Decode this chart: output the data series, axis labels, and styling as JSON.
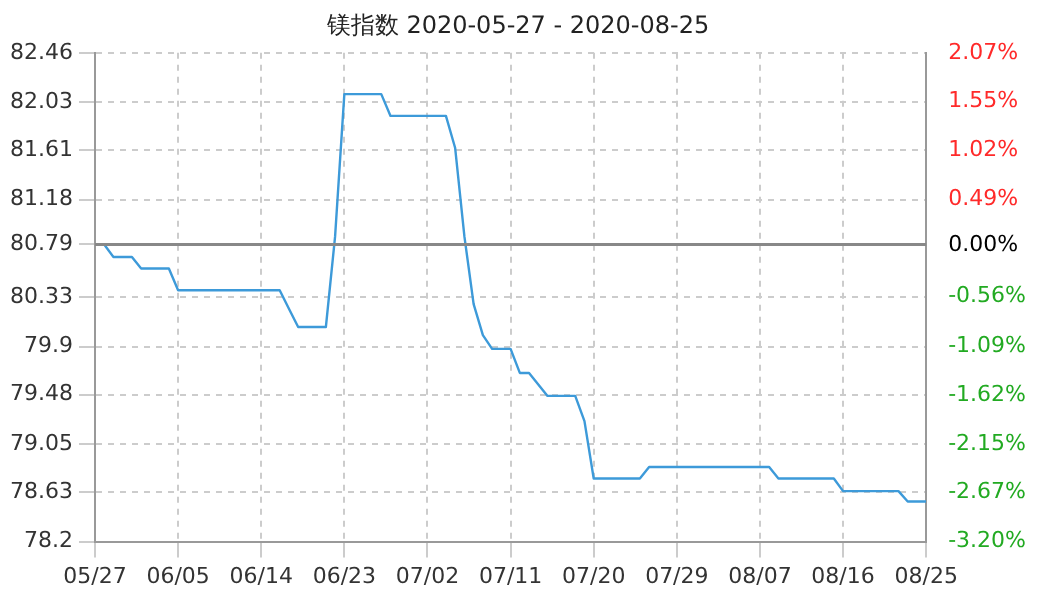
{
  "chart_data": {
    "type": "line",
    "title": "镁指数 2020-05-27 - 2020-08-25",
    "x": [
      "2020-05-27",
      "2020-05-28",
      "2020-05-29",
      "2020-05-31",
      "2020-06-01",
      "2020-06-04",
      "2020-06-05",
      "2020-06-16",
      "2020-06-17",
      "2020-06-18",
      "2020-06-21",
      "2020-06-22",
      "2020-06-23",
      "2020-06-27",
      "2020-06-28",
      "2020-07-04",
      "2020-07-05",
      "2020-07-06",
      "2020-07-07",
      "2020-07-08",
      "2020-07-09",
      "2020-07-11",
      "2020-07-12",
      "2020-07-13",
      "2020-07-15",
      "2020-07-18",
      "2020-07-19",
      "2020-07-20",
      "2020-07-25",
      "2020-07-26",
      "2020-08-08",
      "2020-08-09",
      "2020-08-15",
      "2020-08-16",
      "2020-08-22",
      "2020-08-23",
      "2020-08-25"
    ],
    "series": [
      {
        "color": "#3d9ad9",
        "values": [
          80.79,
          80.79,
          80.68,
          80.68,
          80.58,
          80.58,
          80.39,
          80.39,
          80.23,
          80.07,
          80.07,
          80.86,
          82.1,
          82.1,
          81.91,
          81.91,
          81.63,
          80.86,
          80.27,
          80.0,
          79.88,
          79.88,
          79.67,
          79.67,
          79.47,
          79.47,
          79.25,
          78.75,
          78.75,
          78.85,
          78.85,
          78.75,
          78.75,
          78.64,
          78.64,
          78.55,
          78.55
        ]
      }
    ],
    "xlim": [
      "2020-05-27",
      "2020-08-25"
    ],
    "xticks": [
      {
        "value": "2020-05-27",
        "label": "05/27"
      },
      {
        "value": "2020-06-05",
        "label": "06/05"
      },
      {
        "value": "2020-06-14",
        "label": "06/14"
      },
      {
        "value": "2020-06-23",
        "label": "06/23"
      },
      {
        "value": "2020-07-02",
        "label": "07/02"
      },
      {
        "value": "2020-07-11",
        "label": "07/11"
      },
      {
        "value": "2020-07-20",
        "label": "07/20"
      },
      {
        "value": "2020-07-29",
        "label": "07/29"
      },
      {
        "value": "2020-08-07",
        "label": "08/07"
      },
      {
        "value": "2020-08-16",
        "label": "08/16"
      },
      {
        "value": "2020-08-25",
        "label": "08/25"
      }
    ],
    "ylim": [
      78.2,
      82.46
    ],
    "yticks": [
      78.2,
      78.63,
      79.05,
      79.48,
      79.9,
      80.33,
      80.79,
      81.18,
      81.61,
      82.03,
      82.46
    ],
    "y2lim": [
      -3.2,
      2.07
    ],
    "y2ticks": [
      {
        "value": -3.2,
        "label": "-3.20%"
      },
      {
        "value": -2.67,
        "label": "-2.67%"
      },
      {
        "value": -2.15,
        "label": "-2.15%"
      },
      {
        "value": -1.62,
        "label": "-1.62%"
      },
      {
        "value": -1.09,
        "label": "-1.09%"
      },
      {
        "value": -0.56,
        "label": "-0.56%"
      },
      {
        "value": 0,
        "label": "0.00%"
      },
      {
        "value": 0.49,
        "label": "0.49%"
      },
      {
        "value": 1.02,
        "label": "1.02%"
      },
      {
        "value": 1.55,
        "label": "1.55%"
      },
      {
        "value": 2.07,
        "label": "2.07%"
      }
    ],
    "ref_lines": [
      {
        "axis": "y",
        "value": 80.79,
        "color": "#888888"
      }
    ],
    "grid": true,
    "legend": false,
    "marker": "none",
    "line_style": "solid"
  }
}
